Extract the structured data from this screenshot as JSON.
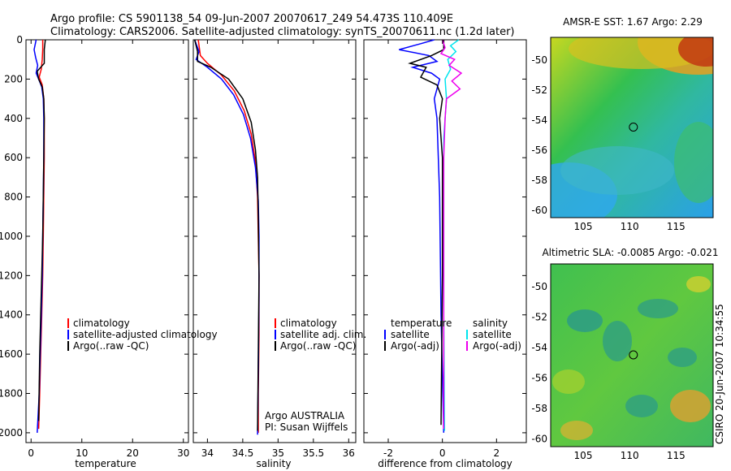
{
  "header": {
    "line1": "Argo profile: CS 5901138_54 09-Jun-2007 20070617_249 54.473S 110.409E",
    "line2": "Climatology: CARS2006. Satellite-adjusted climatology: synTS_20070611.nc (1.2d later)"
  },
  "footer": {
    "stamp": "CSIRO 20-Jun-2007 10:34:55"
  },
  "colors": {
    "clim": "#ff0000",
    "sat": "#0000ff",
    "argo": "#000000",
    "sal_sat": "#00e5ee",
    "sal_argo": "#ee00ee"
  },
  "chart_data": [
    {
      "type": "line",
      "id": "temperature",
      "xlabel": "temperature",
      "xlim": [
        -1,
        31
      ],
      "ylim": [
        0,
        2050
      ],
      "xticks": [
        "0",
        "10",
        "20",
        "30"
      ],
      "yticks": [
        "0",
        "200",
        "400",
        "600",
        "800",
        "1000",
        "1200",
        "1400",
        "1600",
        "1800",
        "2000"
      ],
      "legend": [
        "climatology",
        "satellite-adjusted climatology",
        "Argo(..raw -QC)"
      ],
      "series": [
        {
          "name": "climatology",
          "color": "#ff0000",
          "x": [
            2.3,
            2.3,
            2.2,
            2.0,
            1.8,
            1.6,
            2.2,
            2.5,
            2.6,
            2.6,
            2.5,
            2.4,
            2.3,
            2.1,
            1.9,
            1.7,
            1.5
          ],
          "y": [
            0,
            50,
            100,
            150,
            170,
            190,
            230,
            300,
            400,
            600,
            800,
            1000,
            1200,
            1400,
            1600,
            1800,
            1980
          ]
        },
        {
          "name": "satellite-adjusted climatology",
          "color": "#0000ff",
          "x": [
            1.0,
            0.6,
            0.9,
            1.3,
            1.0,
            1.5,
            2.1,
            2.4,
            2.5,
            2.5,
            2.4,
            2.3,
            2.2,
            2.0,
            1.8,
            1.6,
            1.2
          ],
          "y": [
            0,
            50,
            90,
            130,
            170,
            200,
            240,
            300,
            400,
            600,
            800,
            1000,
            1200,
            1400,
            1600,
            1800,
            2000
          ]
        },
        {
          "name": "Argo(..raw -QC)",
          "color": "#000000",
          "x": [
            2.8,
            2.6,
            2.6,
            1.2,
            1.5,
            2.2,
            2.5,
            2.6,
            2.5,
            2.4,
            2.3,
            2.1,
            1.9,
            1.7,
            1.5
          ],
          "y": [
            0,
            50,
            120,
            160,
            200,
            240,
            300,
            400,
            600,
            800,
            1000,
            1200,
            1400,
            1600,
            1940
          ]
        }
      ]
    },
    {
      "type": "line",
      "id": "salinity",
      "xlabel": "salinity",
      "xlim": [
        33.8,
        36.1
      ],
      "ylim": [
        0,
        2050
      ],
      "xticks": [
        "34",
        "34.5",
        "35",
        "35.5",
        "36"
      ],
      "legend": [
        "climatology",
        "satellite adj. clim.",
        "Argo(..raw -QC)"
      ],
      "annotation": [
        "Argo AUSTRALIA",
        "PI: Susan Wijffels"
      ],
      "series": [
        {
          "name": "climatology",
          "color": "#ff0000",
          "x": [
            33.87,
            33.9,
            34.0,
            34.2,
            34.38,
            34.52,
            34.62,
            34.68,
            34.71,
            34.72,
            34.73,
            34.73,
            34.72,
            34.72
          ],
          "y": [
            0,
            80,
            120,
            180,
            260,
            360,
            480,
            620,
            800,
            1000,
            1200,
            1500,
            1800,
            2000
          ]
        },
        {
          "name": "satellite adj. clim.",
          "color": "#0000ff",
          "x": [
            33.82,
            33.88,
            33.84,
            34.0,
            34.2,
            34.37,
            34.51,
            34.61,
            34.68,
            34.72,
            34.73,
            34.73,
            34.72,
            34.71
          ],
          "y": [
            0,
            60,
            100,
            140,
            200,
            280,
            380,
            500,
            650,
            820,
            1000,
            1300,
            1700,
            2010
          ]
        },
        {
          "name": "Argo(..raw -QC)",
          "color": "#000000",
          "x": [
            33.82,
            33.86,
            33.86,
            34.05,
            34.3,
            34.5,
            34.62,
            34.68,
            34.71,
            34.72,
            34.73,
            34.72,
            34.71
          ],
          "y": [
            0,
            60,
            110,
            140,
            200,
            300,
            420,
            560,
            700,
            900,
            1200,
            1600,
            1990
          ]
        }
      ]
    },
    {
      "type": "line",
      "id": "difference",
      "xlabel": "difference from climatology",
      "xlim": [
        -2.9,
        3.1
      ],
      "ylim": [
        0,
        2050
      ],
      "xticks": [
        "-2",
        "0",
        "2"
      ],
      "legend_left_title": "temperature",
      "legend_left": [
        "satellite",
        "Argo(-adj)"
      ],
      "legend_right_title": "salinity",
      "legend_right": [
        "satellite",
        "Argo(-adj)"
      ],
      "series": [
        {
          "name": "temperature satellite",
          "color": "#0000ff",
          "x": [
            -0.3,
            -0.8,
            -1.6,
            -0.5,
            -0.2,
            -1.1,
            -0.4,
            -0.1,
            -0.3,
            -0.2,
            -0.1,
            -0.05,
            0.05
          ],
          "y": [
            0,
            20,
            50,
            80,
            110,
            140,
            170,
            200,
            300,
            400,
            800,
            1400,
            2000
          ]
        },
        {
          "name": "temperature Argo(-adj)",
          "color": "#000000",
          "x": [
            0.05,
            0.05,
            -0.4,
            -1.2,
            -0.6,
            -0.8,
            -0.2,
            0.0,
            -0.1,
            0.0,
            0.0,
            -0.05
          ],
          "y": [
            0,
            50,
            80,
            120,
            140,
            190,
            230,
            300,
            400,
            600,
            1200,
            1960
          ]
        },
        {
          "name": "salinity satellite",
          "color": "#00e5ee",
          "x": [
            0.6,
            0.3,
            0.5,
            0.2,
            0.3,
            0.1,
            0.15,
            0.05,
            0.05,
            0.05,
            0.08
          ],
          "y": [
            0,
            30,
            60,
            100,
            150,
            200,
            300,
            500,
            800,
            1400,
            1990
          ]
        },
        {
          "name": "salinity Argo(-adj)",
          "color": "#ee00ee",
          "x": [
            0.0,
            0.1,
            -0.05,
            0.45,
            0.25,
            0.7,
            0.35,
            0.65,
            0.15,
            0.1,
            0.05,
            0.05,
            0.05
          ],
          "y": [
            0,
            40,
            70,
            100,
            130,
            170,
            210,
            250,
            300,
            400,
            600,
            1200,
            1980
          ]
        }
      ]
    },
    {
      "type": "heatmap",
      "id": "sst",
      "title": "AMSR-E SST: 1.67 Argo: 2.29",
      "xlim": [
        101.5,
        119
      ],
      "ylim": [
        -60.5,
        -48.5
      ],
      "xticks": [
        "105",
        "110",
        "115"
      ],
      "yticks": [
        "-50",
        "-52",
        "-54",
        "-56",
        "-58",
        "-60"
      ],
      "marker": {
        "lon": 110.409,
        "lat": -54.473
      }
    },
    {
      "type": "heatmap",
      "id": "sla",
      "title": "Altimetric SLA: -0.0085 Argo: -0.021",
      "xlim": [
        101.5,
        119
      ],
      "ylim": [
        -60.5,
        -48.5
      ],
      "xticks": [
        "105",
        "110",
        "115"
      ],
      "yticks": [
        "-50",
        "-52",
        "-54",
        "-56",
        "-58",
        "-60"
      ],
      "marker": {
        "lon": 110.409,
        "lat": -54.473
      }
    }
  ]
}
